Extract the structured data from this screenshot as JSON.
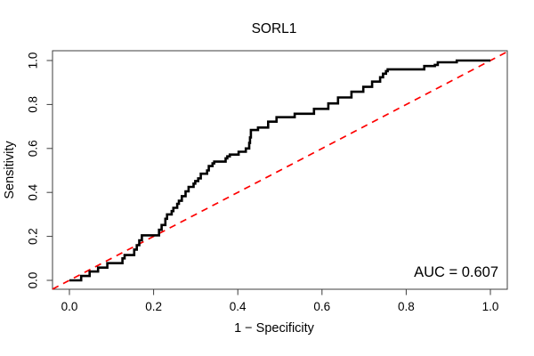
{
  "title": "SORL1",
  "annotation": {
    "auc_label": "AUC = 0.607"
  },
  "colors": {
    "curve": "#000000",
    "diagonal": "#fe0000",
    "box": "#3d3d3d",
    "tick": "#3d3d3d",
    "background": "#ffffff",
    "text": "#000000"
  },
  "chart_data": {
    "type": "line",
    "subtype": "roc-step-curve",
    "title": "SORL1",
    "xlabel": "1 − Specificity",
    "ylabel": "Sensitivity",
    "xlim": [
      0.0,
      1.0
    ],
    "ylim": [
      0.0,
      1.0
    ],
    "grid": false,
    "legend": "none",
    "auc": 0.607,
    "x_tick_labels": [
      "0.0",
      "0.2",
      "0.4",
      "0.6",
      "0.8",
      "1.0"
    ],
    "y_tick_labels": [
      "0.0",
      "0.2",
      "0.4",
      "0.6",
      "0.8",
      "1.0"
    ],
    "diagonal_reference": {
      "from": [
        0,
        0
      ],
      "to": [
        1,
        1
      ],
      "style": "dashed",
      "color": "#fe0000"
    },
    "roc_steps": [
      [
        0.028,
        0.02
      ],
      [
        0.048,
        0.04
      ],
      [
        0.068,
        0.058
      ],
      [
        0.09,
        0.078
      ],
      [
        0.126,
        0.1
      ],
      [
        0.131,
        0.115
      ],
      [
        0.154,
        0.14
      ],
      [
        0.16,
        0.16
      ],
      [
        0.166,
        0.182
      ],
      [
        0.172,
        0.205
      ],
      [
        0.213,
        0.23
      ],
      [
        0.219,
        0.252
      ],
      [
        0.228,
        0.28
      ],
      [
        0.232,
        0.3
      ],
      [
        0.243,
        0.315
      ],
      [
        0.247,
        0.33
      ],
      [
        0.256,
        0.348
      ],
      [
        0.26,
        0.362
      ],
      [
        0.267,
        0.383
      ],
      [
        0.276,
        0.405
      ],
      [
        0.283,
        0.425
      ],
      [
        0.295,
        0.44
      ],
      [
        0.299,
        0.452
      ],
      [
        0.306,
        0.464
      ],
      [
        0.312,
        0.485
      ],
      [
        0.327,
        0.5
      ],
      [
        0.331,
        0.52
      ],
      [
        0.34,
        0.532
      ],
      [
        0.344,
        0.54
      ],
      [
        0.371,
        0.555
      ],
      [
        0.375,
        0.564
      ],
      [
        0.381,
        0.572
      ],
      [
        0.402,
        0.585
      ],
      [
        0.419,
        0.6
      ],
      [
        0.427,
        0.625
      ],
      [
        0.429,
        0.65
      ],
      [
        0.431,
        0.684
      ],
      [
        0.448,
        0.695
      ],
      [
        0.472,
        0.722
      ],
      [
        0.492,
        0.742
      ],
      [
        0.535,
        0.758
      ],
      [
        0.581,
        0.78
      ],
      [
        0.615,
        0.805
      ],
      [
        0.638,
        0.832
      ],
      [
        0.67,
        0.858
      ],
      [
        0.698,
        0.88
      ],
      [
        0.719,
        0.904
      ],
      [
        0.738,
        0.924
      ],
      [
        0.745,
        0.94
      ],
      [
        0.752,
        0.952
      ],
      [
        0.756,
        0.96
      ],
      [
        0.843,
        0.975
      ],
      [
        0.868,
        0.98
      ],
      [
        0.875,
        0.992
      ],
      [
        0.92,
        1.0
      ],
      [
        1.0,
        1.0
      ]
    ]
  }
}
